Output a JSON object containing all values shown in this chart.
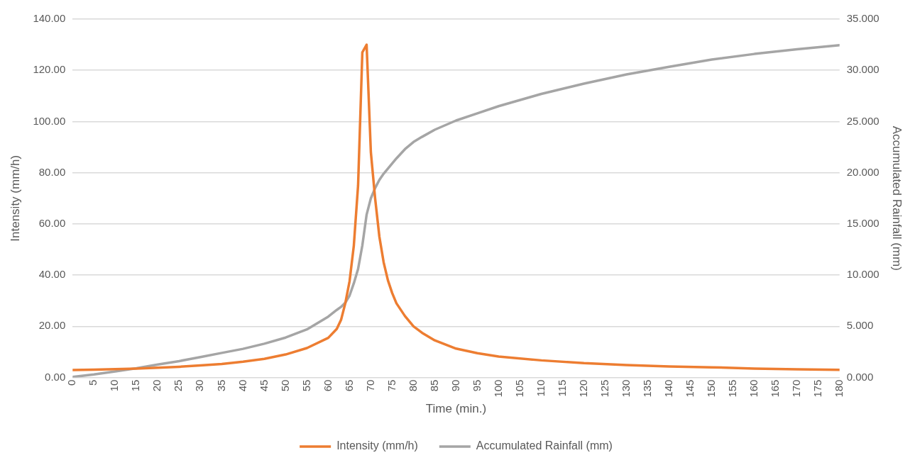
{
  "chart_data": {
    "type": "line",
    "xlabel": "Time (min.)",
    "ylabel": "Intensity (mm/h)",
    "y2label": "Accumulated Rainfall (mm)",
    "x": [
      0,
      5,
      10,
      15,
      20,
      25,
      30,
      35,
      40,
      45,
      50,
      55,
      60,
      62,
      63,
      64,
      65,
      66,
      67,
      68,
      69,
      70,
      71,
      72,
      73,
      74,
      75,
      76,
      78,
      80,
      82,
      85,
      90,
      95,
      100,
      110,
      120,
      130,
      140,
      150,
      160,
      170,
      180
    ],
    "series": [
      {
        "name": "Intensity (mm/h)",
        "color": "#ed7d31",
        "values": [
          2.9,
          3.1,
          3.3,
          3.5,
          3.8,
          4.2,
          4.7,
          5.3,
          6.2,
          7.3,
          9,
          11.5,
          15.5,
          19,
          22.5,
          29,
          37.6,
          51.5,
          75,
          127,
          130,
          88,
          70,
          55,
          45,
          38,
          33,
          29,
          24,
          20,
          17.5,
          14.5,
          11.3,
          9.5,
          8.2,
          6.7,
          5.6,
          4.9,
          4.3,
          4,
          3.5,
          3.2,
          3
        ]
      },
      {
        "name": "Accumulated Rainfall (mm)",
        "color": "#a5a5a5",
        "axis": "y2",
        "values": [
          0.05,
          0.3,
          0.6,
          0.9,
          1.27,
          1.6,
          2,
          2.4,
          2.8,
          3.3,
          3.9,
          4.7,
          5.95,
          6.6,
          6.9,
          7.3,
          8,
          9.2,
          10.6,
          12.9,
          15.9,
          17.5,
          18.5,
          19.3,
          19.9,
          20.4,
          20.9,
          21.4,
          22.3,
          23,
          23.5,
          24.2,
          25.1,
          25.8,
          26.5,
          27.7,
          28.7,
          29.6,
          30.35,
          31.05,
          31.6,
          32.05,
          32.46
        ]
      }
    ],
    "xlim": [
      0,
      180
    ],
    "xticks": [
      0,
      5,
      10,
      15,
      20,
      25,
      30,
      35,
      40,
      45,
      50,
      55,
      60,
      65,
      70,
      75,
      80,
      85,
      90,
      95,
      100,
      105,
      110,
      115,
      120,
      125,
      130,
      135,
      140,
      145,
      150,
      155,
      160,
      165,
      170,
      175,
      180
    ],
    "ylim": [
      0,
      140
    ],
    "yticks": [
      {
        "value": 0,
        "label": "0.00"
      },
      {
        "value": 20,
        "label": "20.00"
      },
      {
        "value": 40,
        "label": "40.00"
      },
      {
        "value": 60,
        "label": "60.00"
      },
      {
        "value": 80,
        "label": "80.00"
      },
      {
        "value": 100,
        "label": "100.00"
      },
      {
        "value": 120,
        "label": "120.00"
      },
      {
        "value": 140,
        "label": "140.00"
      }
    ],
    "y2lim": [
      0,
      35
    ],
    "y2ticks": [
      {
        "value": 0,
        "label": "0.000"
      },
      {
        "value": 5,
        "label": "5.000"
      },
      {
        "value": 10,
        "label": "10.000"
      },
      {
        "value": 15,
        "label": "15.000"
      },
      {
        "value": 20,
        "label": "20.000"
      },
      {
        "value": 25,
        "label": "25.000"
      },
      {
        "value": 30,
        "label": "30.000"
      },
      {
        "value": 35,
        "label": "35.000"
      }
    ],
    "grid": "y",
    "legend": "bottom",
    "marker": "none",
    "line_style": "solid"
  }
}
